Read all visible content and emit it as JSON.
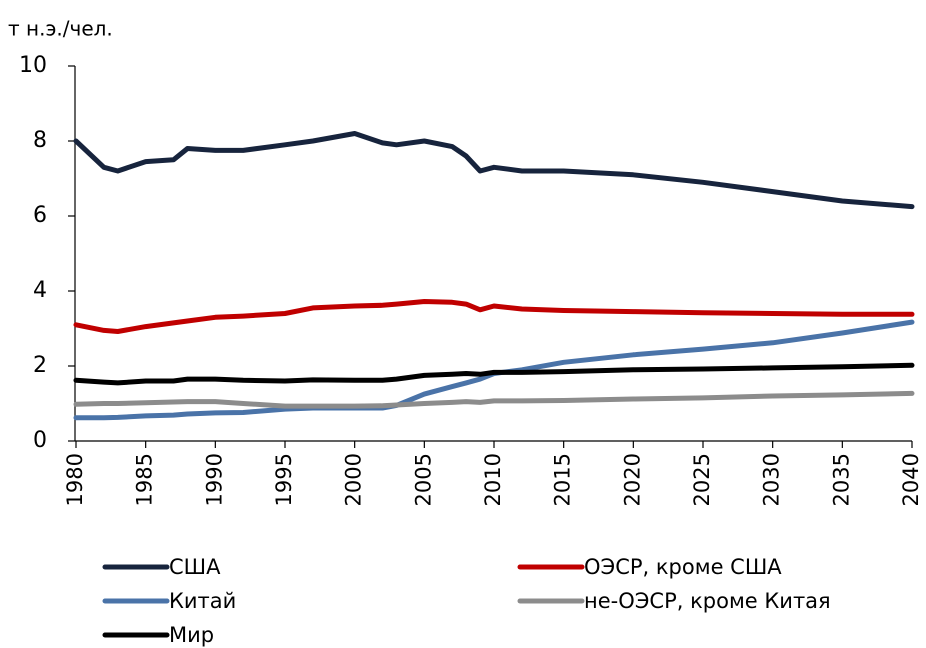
{
  "chart_data": {
    "type": "line",
    "y_label": "т н.э./чел.",
    "x": [
      1980,
      1982,
      1983,
      1985,
      1987,
      1988,
      1990,
      1992,
      1995,
      1997,
      2000,
      2002,
      2003,
      2005,
      2007,
      2008,
      2009,
      2010,
      2012,
      2015,
      2020,
      2025,
      2030,
      2035,
      2040
    ],
    "series": [
      {
        "name": "США",
        "color": "#17243d",
        "values": [
          8.0,
          7.3,
          7.2,
          7.45,
          7.5,
          7.8,
          7.75,
          7.75,
          7.9,
          8.0,
          8.2,
          7.95,
          7.9,
          8.0,
          7.85,
          7.6,
          7.2,
          7.3,
          7.2,
          7.2,
          7.1,
          6.9,
          6.65,
          6.4,
          6.25
        ]
      },
      {
        "name": "ОЭСР, кроме США",
        "color": "#c00000",
        "values": [
          3.1,
          2.95,
          2.92,
          3.05,
          3.15,
          3.2,
          3.3,
          3.33,
          3.4,
          3.55,
          3.6,
          3.62,
          3.65,
          3.72,
          3.7,
          3.65,
          3.5,
          3.6,
          3.52,
          3.48,
          3.45,
          3.42,
          3.4,
          3.38,
          3.38
        ]
      },
      {
        "name": "Китай",
        "color": "#4a73a8",
        "values": [
          0.62,
          0.62,
          0.63,
          0.67,
          0.69,
          0.72,
          0.75,
          0.76,
          0.85,
          0.88,
          0.88,
          0.88,
          0.95,
          1.25,
          1.45,
          1.55,
          1.65,
          1.8,
          1.9,
          2.1,
          2.3,
          2.45,
          2.62,
          2.88,
          3.17
        ]
      },
      {
        "name": "не-ОЭСР, кроме Китая",
        "color": "#8c8c8c",
        "values": [
          0.98,
          1.0,
          1.0,
          1.02,
          1.04,
          1.05,
          1.05,
          1.0,
          0.93,
          0.93,
          0.93,
          0.94,
          0.96,
          1.0,
          1.03,
          1.05,
          1.03,
          1.07,
          1.07,
          1.08,
          1.12,
          1.15,
          1.2,
          1.23,
          1.27
        ]
      },
      {
        "name": "Мир",
        "color": "#000000",
        "values": [
          1.62,
          1.57,
          1.55,
          1.6,
          1.6,
          1.65,
          1.65,
          1.62,
          1.6,
          1.63,
          1.62,
          1.62,
          1.65,
          1.75,
          1.78,
          1.8,
          1.78,
          1.83,
          1.83,
          1.85,
          1.9,
          1.92,
          1.95,
          1.98,
          2.02
        ]
      }
    ],
    "xlim": [
      1980,
      2040
    ],
    "xticks": [
      1980,
      1985,
      1990,
      1995,
      2000,
      2005,
      2010,
      2015,
      2020,
      2025,
      2030,
      2035,
      2040
    ],
    "ylim": [
      0,
      10
    ],
    "yticks": [
      0,
      2,
      4,
      6,
      8,
      10
    ]
  }
}
